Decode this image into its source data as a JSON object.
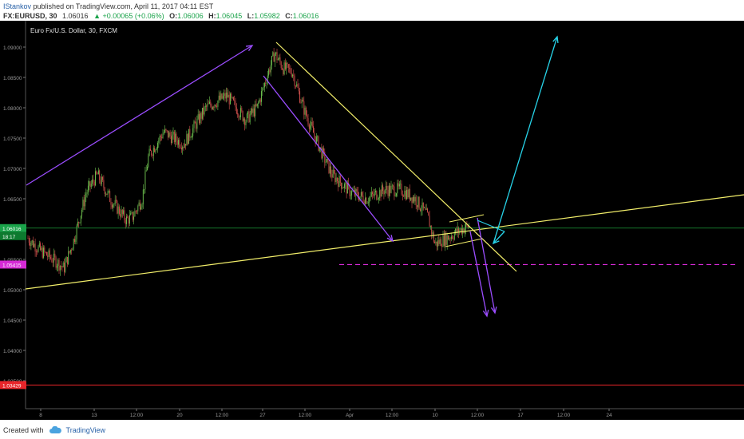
{
  "header": {
    "user": "IStankov",
    "published": "published on TradingView.com, April 11, 2017 04:11 EST",
    "symbol": "FX:EURUSD, 30",
    "last": "1.06016",
    "change": "+0.00065 (+0.06%)",
    "o_label": "O:",
    "o": "1.06006",
    "h_label": "H:",
    "h": "1.06045",
    "l_label": "L:",
    "l": "1.05982",
    "c_label": "C:",
    "c": "1.06016",
    "up_arrow": "▲"
  },
  "footer": {
    "created_with": "Created with",
    "brand": "TradingView",
    "logo_icon": "cloud-logo-icon"
  },
  "colors": {
    "background": "#000000",
    "up_candle": "#6fc24f",
    "down_candle": "#d9534f",
    "trendline_yellow": "#f2ee6a",
    "arrow_purple": "#9b4dff",
    "arrow_cyan": "#27d3e8",
    "support_magenta": "#d62ad6",
    "level_red": "#e8252a",
    "price_line_green": "#1e9a3a",
    "axis_text": "#9a9a9a"
  },
  "chart_data": {
    "type": "candlestick",
    "title": "Euro Fx/U.S. Dollar, 30, FXCM",
    "yticks": [
      1.035,
      1.04,
      1.045,
      1.05,
      1.055,
      1.06,
      1.065,
      1.07,
      1.075,
      1.08,
      1.085,
      1.09
    ],
    "ytick_labels": [
      "1.03500",
      "1.04000",
      "1.04500",
      "1.05000",
      "1.05500",
      "1.06000",
      "1.06500",
      "1.07000",
      "1.07500",
      "1.08000",
      "1.08500",
      "1.09000"
    ],
    "xticks": [
      "8",
      "13",
      "12:00",
      "20",
      "12:00",
      "27",
      "12:00",
      "Apr",
      "12:00",
      "10",
      "12:00",
      "17",
      "12:00",
      "24"
    ],
    "price_labels": [
      {
        "name": "last-price",
        "value": 1.06016,
        "label": "1.06016",
        "sub": "18:17",
        "color": "#1aa34a"
      },
      {
        "name": "support-level",
        "value": 1.05415,
        "label": "1.05415",
        "color": "#d62ad6"
      },
      {
        "name": "target-level",
        "value": 1.03429,
        "label": "1.03429",
        "color": "#e8252a"
      }
    ],
    "ylim": [
      1.0315,
      1.0925
    ],
    "grid": false
  }
}
